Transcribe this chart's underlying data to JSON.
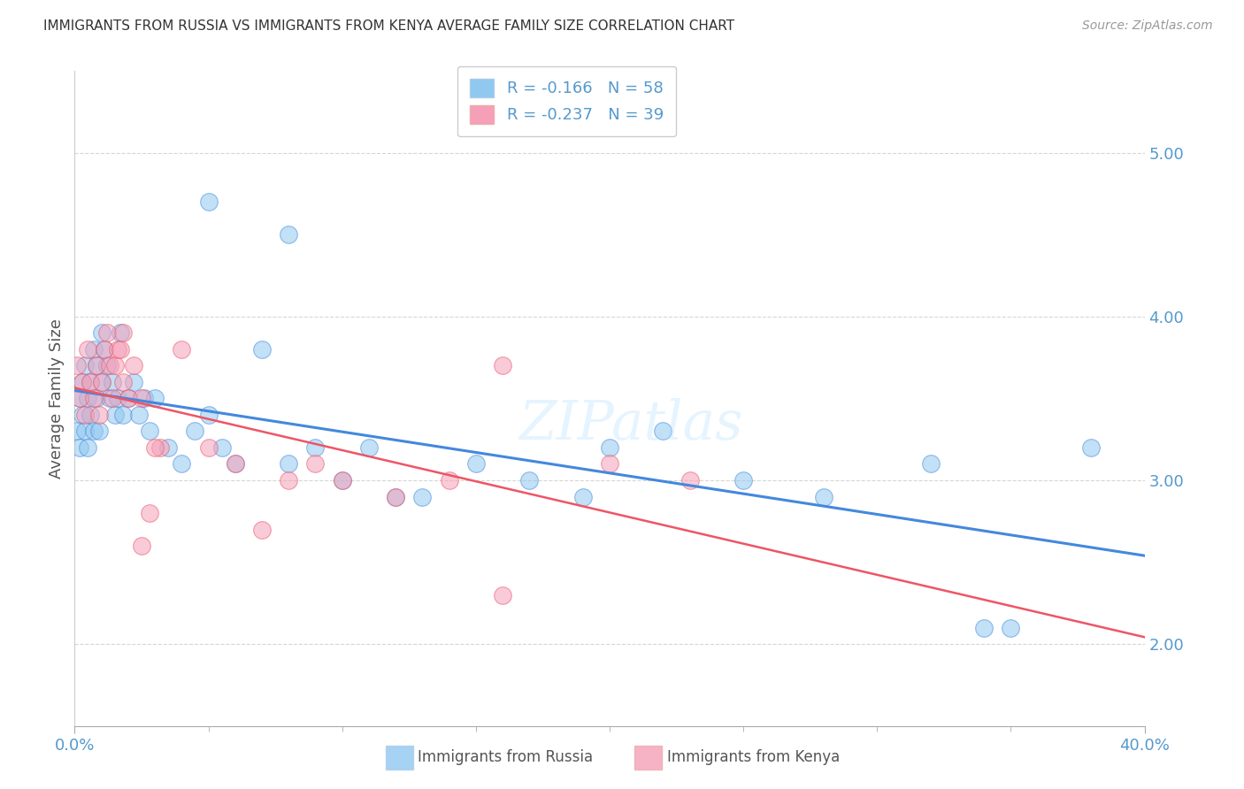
{
  "title": "IMMIGRANTS FROM RUSSIA VS IMMIGRANTS FROM KENYA AVERAGE FAMILY SIZE CORRELATION CHART",
  "source": "Source: ZipAtlas.com",
  "ylabel": "Average Family Size",
  "yticks": [
    2.0,
    3.0,
    4.0,
    5.0
  ],
  "ylim": [
    1.5,
    5.5
  ],
  "xlim": [
    0.0,
    0.4
  ],
  "russia_R": -0.166,
  "russia_N": 58,
  "kenya_R": -0.237,
  "kenya_N": 39,
  "russia_color": "#90C8F0",
  "kenya_color": "#F5A0B8",
  "russia_line_color": "#4488DD",
  "kenya_line_color": "#EE5566",
  "background_color": "#FFFFFF",
  "grid_color": "#CCCCCC",
  "title_color": "#333333",
  "axis_color": "#5599CC",
  "watermark": "ZIPatlas",
  "russia_x": [
    0.001,
    0.002,
    0.002,
    0.003,
    0.003,
    0.004,
    0.004,
    0.005,
    0.005,
    0.006,
    0.006,
    0.007,
    0.007,
    0.008,
    0.008,
    0.009,
    0.01,
    0.01,
    0.011,
    0.012,
    0.013,
    0.014,
    0.015,
    0.016,
    0.017,
    0.018,
    0.02,
    0.022,
    0.024,
    0.026,
    0.028,
    0.03,
    0.035,
    0.04,
    0.045,
    0.05,
    0.055,
    0.06,
    0.07,
    0.08,
    0.09,
    0.1,
    0.11,
    0.12,
    0.13,
    0.15,
    0.17,
    0.19,
    0.22,
    0.25,
    0.28,
    0.32,
    0.35,
    0.38,
    0.05,
    0.08,
    0.2,
    0.34
  ],
  "russia_y": [
    3.3,
    3.2,
    3.5,
    3.4,
    3.6,
    3.3,
    3.7,
    3.5,
    3.2,
    3.4,
    3.6,
    3.3,
    3.8,
    3.5,
    3.7,
    3.3,
    3.9,
    3.6,
    3.8,
    3.7,
    3.5,
    3.6,
    3.4,
    3.5,
    3.9,
    3.4,
    3.5,
    3.6,
    3.4,
    3.5,
    3.3,
    3.5,
    3.2,
    3.1,
    3.3,
    3.4,
    3.2,
    3.1,
    3.8,
    3.1,
    3.2,
    3.0,
    3.2,
    2.9,
    2.9,
    3.1,
    3.0,
    2.9,
    3.3,
    3.0,
    2.9,
    3.1,
    2.1,
    3.2,
    4.7,
    4.5,
    3.2,
    2.1
  ],
  "kenya_x": [
    0.001,
    0.002,
    0.003,
    0.004,
    0.005,
    0.006,
    0.007,
    0.008,
    0.009,
    0.01,
    0.011,
    0.012,
    0.013,
    0.014,
    0.015,
    0.016,
    0.017,
    0.018,
    0.02,
    0.022,
    0.025,
    0.028,
    0.032,
    0.04,
    0.05,
    0.06,
    0.07,
    0.08,
    0.09,
    0.1,
    0.12,
    0.14,
    0.16,
    0.2,
    0.23,
    0.16,
    0.03,
    0.018,
    0.025
  ],
  "kenya_y": [
    3.7,
    3.5,
    3.6,
    3.4,
    3.8,
    3.6,
    3.5,
    3.7,
    3.4,
    3.6,
    3.8,
    3.9,
    3.7,
    3.5,
    3.7,
    3.8,
    3.8,
    3.6,
    3.5,
    3.7,
    3.5,
    2.8,
    3.2,
    3.8,
    3.2,
    3.1,
    2.7,
    3.0,
    3.1,
    3.0,
    2.9,
    3.0,
    3.7,
    3.1,
    3.0,
    2.3,
    3.2,
    3.9,
    2.6
  ]
}
